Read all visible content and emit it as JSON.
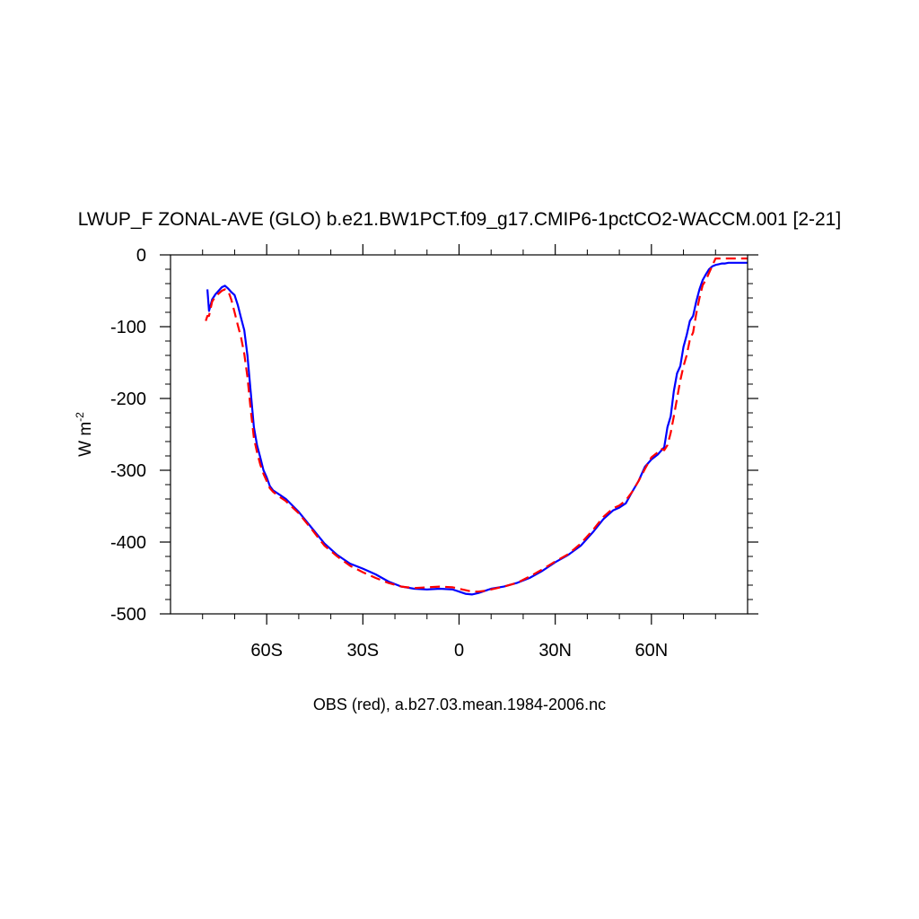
{
  "chart_data": {
    "type": "line",
    "title": "LWUP_F ZONAL-AVE (GLO) b.e21.BW1PCT.f09_g17.CMIP6-1pctCO2-WACCM.001 [2-21]",
    "ylabel": {
      "base": "W m",
      "sup": "-2"
    },
    "xlabel": "OBS (red), a.b27.03.mean.1984-2006.nc",
    "xlim": [
      -90,
      90
    ],
    "ylim": [
      -500,
      0
    ],
    "x_ticks": [
      {
        "value": -60,
        "label": "60S"
      },
      {
        "value": -30,
        "label": "30S"
      },
      {
        "value": 0,
        "label": "0"
      },
      {
        "value": 30,
        "label": "30N"
      },
      {
        "value": 60,
        "label": "60N"
      }
    ],
    "y_ticks": [
      {
        "value": 0,
        "label": "0"
      },
      {
        "value": -100,
        "label": "-100"
      },
      {
        "value": -200,
        "label": "-200"
      },
      {
        "value": -300,
        "label": "-300"
      },
      {
        "value": -400,
        "label": "-400"
      },
      {
        "value": -500,
        "label": "-500"
      }
    ],
    "series": [
      {
        "color": "#0000ff",
        "dash": "solid",
        "x": [
          -78.5,
          -78,
          -77,
          -76,
          -75,
          -74,
          -73,
          -72,
          -71,
          -70,
          -69,
          -68,
          -67,
          -66,
          -65,
          -64,
          -63,
          -62,
          -61,
          -60,
          -59,
          -58,
          -56,
          -54,
          -50,
          -46,
          -42,
          -38,
          -34,
          -30,
          -26,
          -22,
          -18,
          -14,
          -10,
          -6,
          -2,
          0,
          2,
          4,
          6,
          8,
          10,
          14,
          18,
          22,
          26,
          30,
          34,
          38,
          42,
          45,
          48,
          50,
          52,
          54,
          56,
          58,
          60,
          62,
          63,
          64,
          65,
          66,
          67,
          68,
          69,
          70,
          71,
          72,
          73,
          74,
          75,
          76,
          77,
          78,
          79,
          80,
          81,
          82,
          83,
          84,
          85,
          86,
          87,
          88,
          90
        ],
        "y": [
          -48,
          -78,
          -62,
          -55,
          -50,
          -45,
          -43,
          -47,
          -52,
          -56,
          -70,
          -88,
          -105,
          -140,
          -190,
          -240,
          -265,
          -282,
          -300,
          -310,
          -322,
          -328,
          -334,
          -340,
          -358,
          -380,
          -402,
          -418,
          -430,
          -437,
          -445,
          -455,
          -462,
          -465,
          -466,
          -465,
          -466,
          -469,
          -472,
          -473,
          -471,
          -468,
          -465,
          -462,
          -457,
          -450,
          -440,
          -428,
          -418,
          -405,
          -385,
          -368,
          -356,
          -352,
          -346,
          -330,
          -315,
          -295,
          -285,
          -278,
          -273,
          -268,
          -240,
          -225,
          -190,
          -165,
          -155,
          -128,
          -112,
          -92,
          -85,
          -65,
          -48,
          -35,
          -27,
          -20,
          -16,
          -14,
          -13,
          -12,
          -12,
          -11,
          -11,
          -11,
          -11,
          -11,
          -11
        ]
      },
      {
        "color": "#ff0000",
        "dash": "dashed",
        "x": [
          -79,
          -78.5,
          -78,
          -77,
          -76,
          -75,
          -74,
          -73,
          -72,
          -71,
          -70,
          -69,
          -68,
          -67,
          -66,
          -65,
          -64,
          -63,
          -62,
          -61,
          -60,
          -59,
          -58,
          -56,
          -54,
          -50,
          -46,
          -42,
          -38,
          -34,
          -30,
          -26,
          -22,
          -18,
          -14,
          -10,
          -6,
          -2,
          0,
          2,
          4,
          6,
          8,
          10,
          14,
          18,
          22,
          26,
          30,
          34,
          38,
          42,
          45,
          48,
          50,
          52,
          54,
          56,
          58,
          60,
          62,
          63,
          64,
          65,
          66,
          67,
          68,
          69,
          70,
          71,
          72,
          73,
          74,
          75,
          76,
          77,
          78,
          79,
          80,
          81,
          82,
          83,
          84,
          85,
          86,
          87,
          88,
          90
        ],
        "y": [
          -92,
          -85,
          -85,
          -65,
          -58,
          -54,
          -50,
          -48,
          -50,
          -63,
          -80,
          -98,
          -115,
          -138,
          -170,
          -215,
          -255,
          -275,
          -292,
          -305,
          -315,
          -325,
          -330,
          -337,
          -343,
          -360,
          -382,
          -405,
          -420,
          -433,
          -442,
          -450,
          -457,
          -462,
          -464,
          -463,
          -462,
          -463,
          -465,
          -467,
          -469,
          -469,
          -468,
          -466,
          -462,
          -457,
          -448,
          -438,
          -427,
          -417,
          -402,
          -382,
          -365,
          -353,
          -349,
          -342,
          -330,
          -315,
          -298,
          -282,
          -275,
          -270,
          -272,
          -265,
          -248,
          -225,
          -200,
          -175,
          -155,
          -140,
          -118,
          -108,
          -82,
          -60,
          -42,
          -35,
          -25,
          -15,
          -5,
          -5,
          -5,
          -5,
          -5,
          -5,
          -5,
          -5,
          -5,
          -5
        ]
      }
    ]
  }
}
